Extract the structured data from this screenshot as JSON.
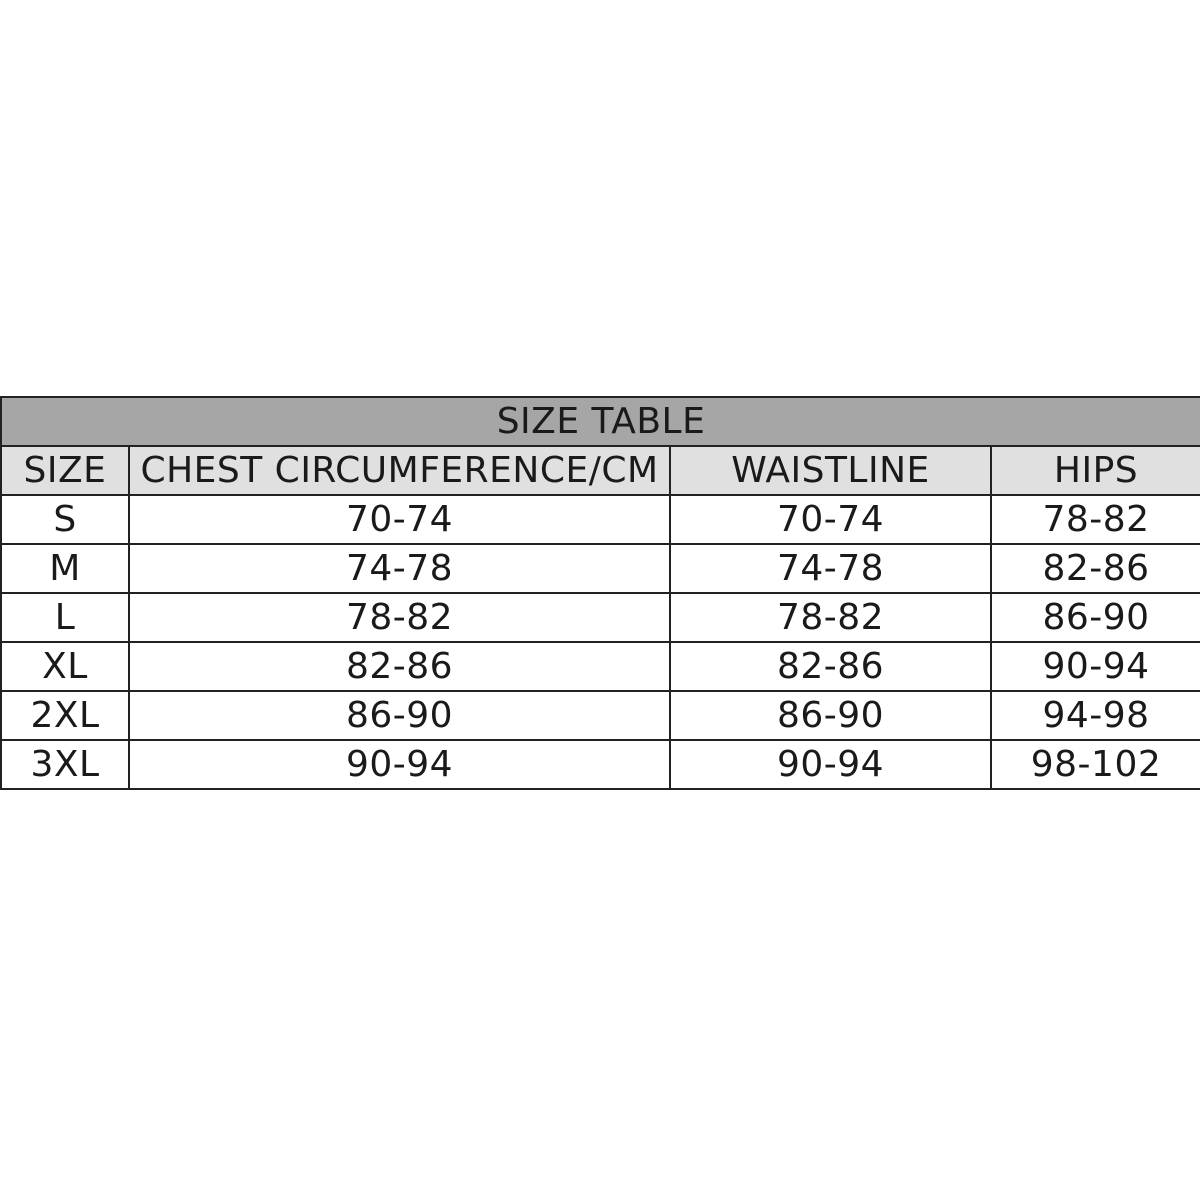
{
  "title": "SIZE TABLE",
  "headers": [
    "SIZE",
    "CHEST CIRCUMFERENCE/CM",
    "WAISTLINE",
    "HIPS"
  ],
  "rows": [
    [
      "S",
      "70-74",
      "70-74",
      "78-82"
    ],
    [
      "M",
      "74-78",
      "74-78",
      "82-86"
    ],
    [
      "L",
      "78-82",
      "78-82",
      "86-90"
    ],
    [
      "XL",
      "82-86",
      "82-86",
      "90-94"
    ],
    [
      "2XL",
      "86-90",
      "86-90",
      "94-98"
    ],
    [
      "3XL",
      "90-94",
      "90-94",
      "98-102"
    ]
  ],
  "colors": {
    "title_bg": "#a6a6a6",
    "header_bg": "#e0e0e0",
    "border": "#222222"
  }
}
